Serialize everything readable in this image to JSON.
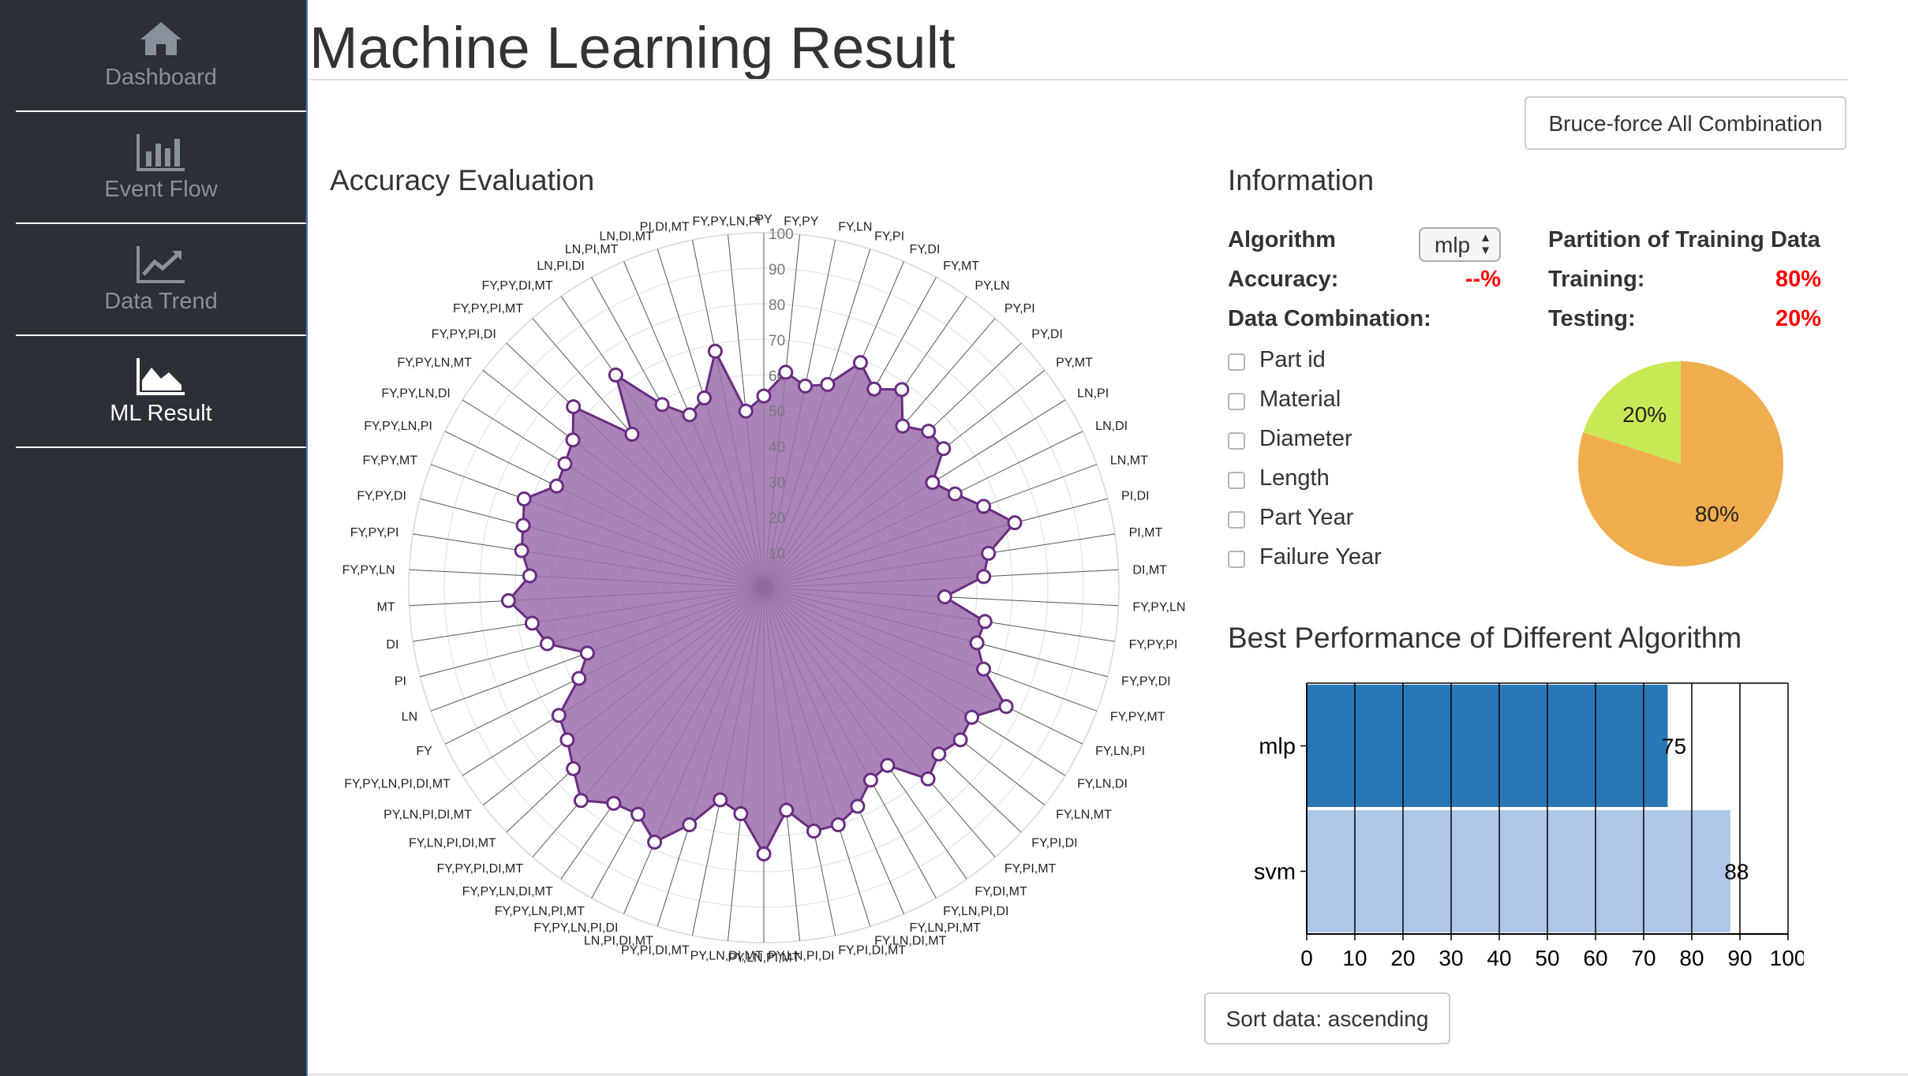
{
  "sidebar": {
    "items": [
      {
        "label": "Dashboard",
        "icon": "home-icon"
      },
      {
        "label": "Event Flow",
        "icon": "bar-chart-icon"
      },
      {
        "label": "Data Trend",
        "icon": "line-chart-icon"
      },
      {
        "label": "ML Result",
        "icon": "area-chart-icon",
        "active": true
      }
    ]
  },
  "page": {
    "title": "Machine Learning Result"
  },
  "toolbar": {
    "bruteforce_label": "Bruce-force All Combination",
    "sort_label": "Sort data: ascending"
  },
  "accuracy": {
    "title": "Accuracy Evaluation"
  },
  "information": {
    "title": "Information",
    "algorithm_label": "Algorithm",
    "algorithm_value": "mlp",
    "accuracy_label": "Accuracy:",
    "accuracy_value": "--%",
    "data_combination_label": "Data Combination:",
    "combinations": [
      {
        "label": "Part id",
        "checked": false
      },
      {
        "label": "Material",
        "checked": false
      },
      {
        "label": "Diameter",
        "checked": false
      },
      {
        "label": "Length",
        "checked": false
      },
      {
        "label": "Part Year",
        "checked": false
      },
      {
        "label": "Failure Year",
        "checked": false
      }
    ],
    "partition_title": "Partition of Training Data",
    "training_label": "Training:",
    "training_value": "80%",
    "testing_label": "Testing:",
    "testing_value": "20%"
  },
  "best": {
    "title": "Best Performance of Different Algorithm"
  },
  "colors": {
    "sidebar_bg": "#2b2f36",
    "radar_fill": "#9b6fab",
    "radar_stroke": "#6a2c82",
    "pie_training": "#f0ad4e",
    "pie_testing": "#c8e955",
    "bar_mlp": "#2878b5",
    "bar_svm": "#aec7e8",
    "alert": "#ff0000"
  },
  "chart_data": [
    {
      "type": "radar",
      "title": "Accuracy Evaluation",
      "rlim": [
        0,
        100
      ],
      "rticks": [
        10,
        20,
        30,
        40,
        50,
        60,
        70,
        80,
        90,
        100
      ],
      "grid": true,
      "categories": [
        "PY",
        "FY,PY",
        "FY,LN",
        "FY,PI",
        "FY,DI",
        "FY,MT",
        "PY,LN",
        "PY,PI",
        "PY,DI",
        "PY,MT",
        "LN,PI",
        "LN,DI",
        "LN,MT",
        "PI,DI",
        "PI,MT",
        "DI,MT",
        "FY,PY,LN",
        "FY,PY,PI",
        "FY,PY,DI",
        "FY,PY,MT",
        "FY,LN,PI",
        "FY,LN,DI",
        "FY,LN,MT",
        "FY,PI,DI",
        "FY,PI,MT",
        "FY,DI,MT",
        "FY,LN,PI,DI",
        "FY,LN,PI,MT",
        "FY,LN,DI,MT",
        "FY,PI,DI,MT",
        "PY,LN,PI,DI",
        "PY,LN,PI,MT",
        "PY,LN,DI,MT",
        "PY,PI,DI,MT",
        "LN,PI,DI,MT",
        "FY,PY,LN,PI,DI",
        "FY,PY,LN,PI,MT",
        "FY,PY,LN,DI,MT",
        "FY,PY,PI,DI,MT",
        "FY,LN,PI,DI,MT",
        "PY,LN,PI,DI,MT",
        "FY,PY,LN,PI,DI,MT",
        "FY",
        "LN",
        "PI",
        "DI",
        "MT",
        "FY,PY,LN",
        "FY,PY,PI",
        "FY,PY,DI",
        "FY,PY,MT",
        "FY,PY,LN,PI",
        "FY,PY,LN,DI",
        "FY,PY,LN,MT",
        "FY,PY,PI,DI",
        "FY,PY,PI,MT",
        "FY,PY,DI,MT",
        "LN,PI,DI",
        "LN,PI,MT",
        "LN,DI,MT",
        "PI,DI,MT",
        "FY,PY,LN,PI"
      ],
      "series": [
        {
          "values": [
            54,
            61,
            58,
            60,
            69,
            64,
            68,
            60,
            64,
            64,
            56,
            60,
            66,
            73,
            64,
            62,
            51,
            63,
            62,
            66,
            76,
            69,
            70,
            68,
            71,
            61,
            62,
            67,
            70,
            70,
            63,
            75,
            64,
            61,
            70,
            78,
            73,
            74,
            79,
            74,
            70,
            68,
            58,
            53,
            63,
            66,
            72,
            66,
            69,
            70,
            72,
            65,
            66,
            68,
            74,
            57,
            73,
            59,
            53,
            56,
            68,
            50
          ]
        }
      ]
    },
    {
      "type": "pie",
      "title": "Partition of Training Data",
      "labels": [
        "Training",
        "Testing"
      ],
      "values": [
        80,
        20
      ]
    },
    {
      "type": "bar",
      "orientation": "horizontal",
      "title": "Best Performance of Different Algorithm",
      "categories": [
        "mlp",
        "svm"
      ],
      "values": [
        75,
        88
      ],
      "xlim": [
        0,
        100
      ],
      "xticks": [
        0,
        10,
        20,
        30,
        40,
        50,
        60,
        70,
        80,
        90,
        100
      ],
      "grid": true
    }
  ]
}
